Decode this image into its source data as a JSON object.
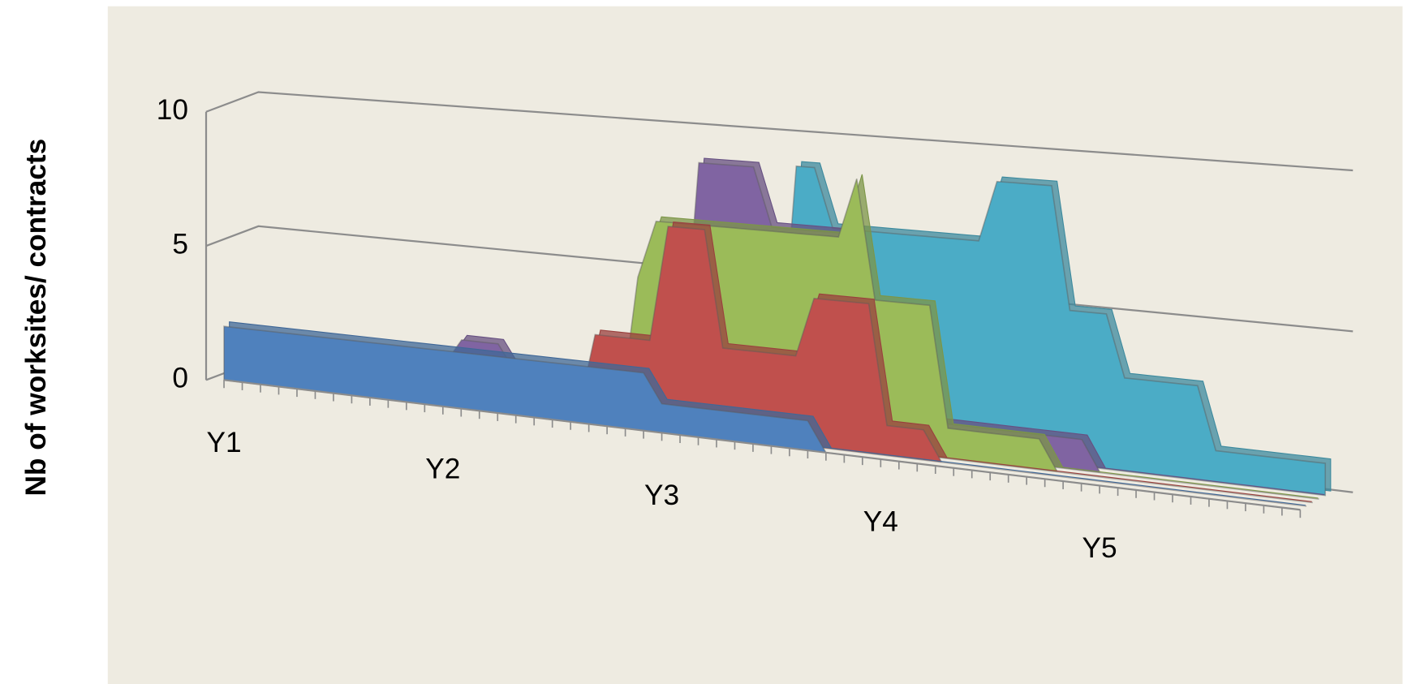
{
  "chart_data": {
    "type": "area3d",
    "y_label": "Nb of worksites/ contracts",
    "categories": [
      "Y1",
      null,
      null,
      null,
      null,
      null,
      null,
      null,
      null,
      null,
      null,
      null,
      "Y2",
      null,
      null,
      null,
      null,
      null,
      null,
      null,
      null,
      null,
      null,
      null,
      "Y3",
      null,
      null,
      null,
      null,
      null,
      null,
      null,
      null,
      null,
      null,
      null,
      "Y4",
      null,
      null,
      null,
      null,
      null,
      null,
      null,
      null,
      null,
      null,
      null,
      "Y5",
      null,
      null,
      null,
      null,
      null,
      null,
      null,
      null,
      null,
      null,
      null
    ],
    "ylim": [
      0,
      10
    ],
    "yticks": [
      0,
      5,
      10
    ],
    "grid": true,
    "series": [
      {
        "color": "#4f81bd",
        "values": [
          2,
          2,
          2,
          2,
          2,
          2,
          2,
          2,
          2,
          2,
          2,
          2,
          2,
          2,
          2,
          2,
          2,
          2,
          2,
          2,
          2,
          2,
          2,
          2,
          1,
          1,
          1,
          1,
          1,
          1,
          1,
          1,
          1,
          0,
          0,
          0,
          0,
          0,
          0,
          0,
          0,
          0,
          0,
          0,
          0,
          0,
          0,
          0,
          0,
          0,
          0,
          0,
          0,
          0,
          0,
          0,
          0,
          0,
          0,
          0
        ]
      },
      {
        "color": "#c0504d",
        "values": [
          null,
          null,
          null,
          null,
          null,
          null,
          null,
          null,
          null,
          null,
          null,
          0,
          0,
          0,
          0,
          0,
          0,
          0,
          0,
          0,
          3,
          3,
          3,
          3,
          7,
          7,
          7,
          3,
          3,
          3,
          3,
          3,
          5,
          5,
          5,
          5,
          1,
          1,
          1,
          0,
          0,
          0,
          0,
          0,
          0,
          0,
          0,
          0,
          0,
          0,
          0,
          0,
          0,
          0,
          0,
          0,
          0,
          0,
          0,
          0
        ]
      },
      {
        "color": "#9bbb59",
        "values": [
          null,
          null,
          null,
          null,
          null,
          null,
          null,
          null,
          null,
          null,
          null,
          null,
          null,
          0,
          0,
          0,
          0,
          0,
          0,
          0,
          0,
          0,
          5,
          7,
          7,
          7,
          7,
          7,
          7,
          7,
          7,
          7,
          7,
          7,
          9,
          5,
          5,
          5,
          5,
          1,
          1,
          1,
          1,
          1,
          1,
          0,
          0,
          0,
          0,
          0,
          0,
          0,
          0,
          0,
          0,
          0,
          0,
          0,
          0,
          0
        ]
      },
      {
        "color": "#8064a2",
        "values": [
          null,
          null,
          null,
          null,
          null,
          null,
          null,
          null,
          null,
          null,
          null,
          1,
          2,
          2,
          2,
          1,
          1,
          1,
          1,
          1,
          1,
          1,
          1,
          1,
          1,
          9,
          9,
          9,
          9,
          7,
          7,
          7,
          7,
          7,
          4,
          4,
          1,
          1,
          1,
          1,
          1,
          1,
          1,
          1,
          1,
          1,
          1,
          0,
          0,
          0,
          0,
          0,
          0,
          0,
          0,
          0,
          0,
          0,
          0,
          0
        ]
      },
      {
        "color": "#4bacc6",
        "values": [
          null,
          null,
          null,
          null,
          null,
          null,
          null,
          null,
          null,
          null,
          null,
          null,
          null,
          null,
          null,
          1,
          1,
          1,
          1,
          1,
          1,
          1,
          1,
          1,
          1,
          1,
          1,
          1,
          1,
          1,
          9,
          9,
          7,
          7,
          7,
          7,
          7,
          7,
          7,
          7,
          7,
          9,
          9,
          9,
          9,
          5,
          5,
          5,
          3,
          3,
          3,
          3,
          3,
          1,
          1,
          1,
          1,
          1,
          1,
          1
        ]
      }
    ]
  }
}
